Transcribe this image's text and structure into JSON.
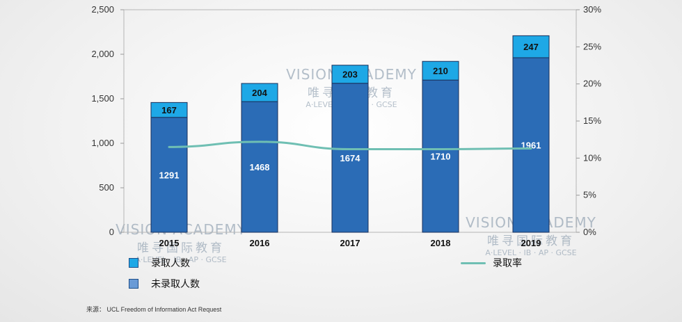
{
  "chart_data": {
    "type": "bar",
    "stacked": true,
    "categories": [
      "2015",
      "2016",
      "2017",
      "2018",
      "2019"
    ],
    "series": [
      {
        "name": "未录取人数",
        "values": [
          1291,
          1468,
          1674,
          1710,
          1961
        ],
        "color": "#2b6cb6"
      },
      {
        "name": "录取人数",
        "values": [
          167,
          204,
          203,
          210,
          247
        ],
        "color": "#1ea8e6"
      }
    ],
    "line_series": {
      "name": "录取率",
      "values": [
        11.5,
        12.2,
        11.2,
        11.2,
        11.3
      ],
      "color": "#6fbfb3",
      "axis": "right"
    },
    "y_left": {
      "min": 0,
      "max": 2500,
      "ticks": [
        "0",
        "500",
        "1,000",
        "1,500",
        "2,000",
        "2,500"
      ]
    },
    "y_right": {
      "min": 0,
      "max": 30,
      "ticks": [
        "0%",
        "5%",
        "10%",
        "15%",
        "20%",
        "25%",
        "30%"
      ]
    },
    "legend": [
      "录取人数",
      "未录取人数",
      "录取率"
    ],
    "legend_position": "bottom",
    "grid": false
  },
  "source": "来源： UCL Freedom of Information Act Request",
  "watermark": {
    "brand": "VISION ACADEMY",
    "cn": "唯寻国际教育",
    "sub": "A·LEVEL · IB · AP · GCSE"
  }
}
